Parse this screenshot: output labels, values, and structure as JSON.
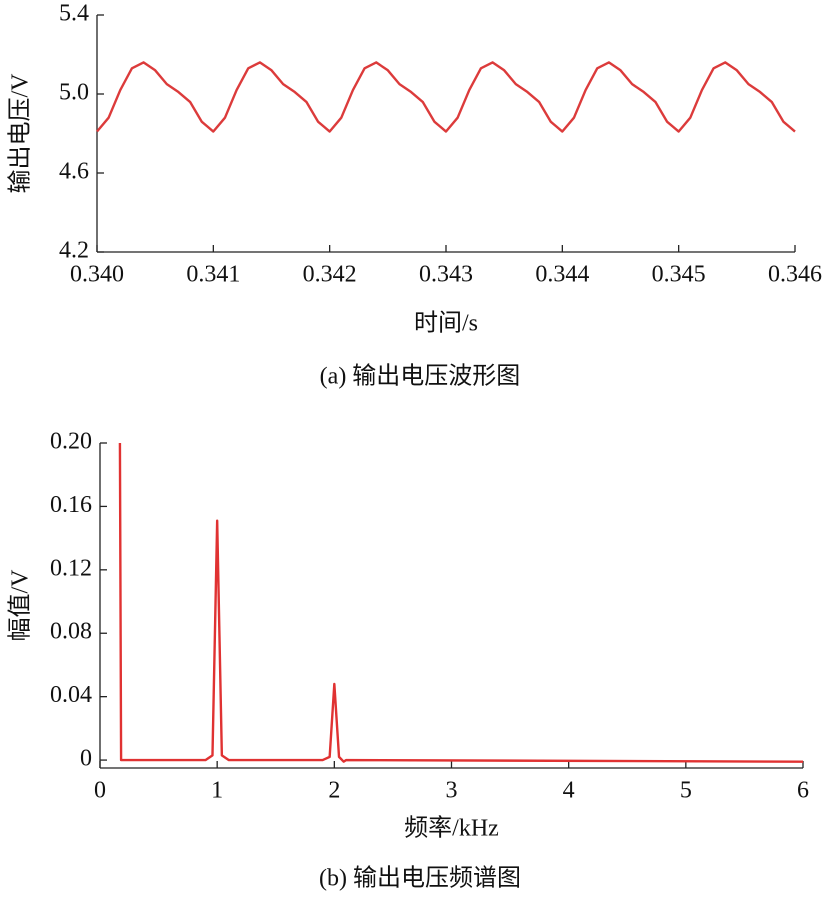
{
  "chart_data": [
    {
      "type": "line",
      "caption": "(a) 输出电压波形图",
      "xlabel": "时间/s",
      "ylabel": "输出电压/V",
      "x": [
        0.34,
        0.3401,
        0.3402,
        0.3403,
        0.3404,
        0.3405,
        0.3406,
        0.3407,
        0.3408,
        0.3409,
        0.341,
        0.3411,
        0.3412,
        0.3413,
        0.3414,
        0.3415,
        0.3416,
        0.3417,
        0.3418,
        0.3419,
        0.342,
        0.3421,
        0.3422,
        0.3423,
        0.3424,
        0.3425,
        0.3426,
        0.3427,
        0.3428,
        0.3429,
        0.343,
        0.3431,
        0.3432,
        0.3433,
        0.3434,
        0.3435,
        0.3436,
        0.3437,
        0.3438,
        0.3439,
        0.344,
        0.3441,
        0.3442,
        0.3443,
        0.3444,
        0.3445,
        0.3446,
        0.3447,
        0.3448,
        0.3449,
        0.345,
        0.3451,
        0.3452,
        0.3453,
        0.3454,
        0.3455,
        0.3456,
        0.3457,
        0.3458,
        0.3459,
        0.346
      ],
      "series": [
        {
          "color": "#dc3b3b",
          "values": [
            4.81,
            4.88,
            5.02,
            5.13,
            5.16,
            5.12,
            5.05,
            5.01,
            4.96,
            4.86,
            4.81,
            4.88,
            5.02,
            5.13,
            5.16,
            5.12,
            5.05,
            5.01,
            4.96,
            4.86,
            4.81,
            4.88,
            5.02,
            5.13,
            5.16,
            5.12,
            5.05,
            5.01,
            4.96,
            4.86,
            4.81,
            4.88,
            5.02,
            5.13,
            5.16,
            5.12,
            5.05,
            5.01,
            4.96,
            4.86,
            4.81,
            4.88,
            5.02,
            5.13,
            5.16,
            5.12,
            5.05,
            5.01,
            4.96,
            4.86,
            4.81,
            4.88,
            5.02,
            5.13,
            5.16,
            5.12,
            5.05,
            5.01,
            4.96,
            4.86,
            4.81
          ]
        }
      ],
      "xlim": [
        0.34,
        0.346
      ],
      "xticks": [
        {
          "value": 0.34,
          "label": "0.340"
        },
        0.341,
        0.342,
        0.343,
        0.344,
        0.345,
        0.346
      ],
      "ylim": [
        4.2,
        5.4
      ],
      "yticks": [
        4.2,
        4.6,
        {
          "value": 5,
          "label": "5.0"
        },
        5.4
      ]
    },
    {
      "type": "line",
      "caption": "(b) 输出电压频谱图",
      "xlabel": "频率/kHz",
      "ylabel": "幅值/V",
      "x": [
        0.17,
        0.18,
        0.9,
        0.96,
        1.0,
        1.04,
        1.1,
        1.9,
        1.96,
        2.0,
        2.04,
        2.08,
        2.1,
        6
      ],
      "series": [
        {
          "color": "#e03232",
          "values": [
            0.2,
            0,
            0,
            0.003,
            0.151,
            0.003,
            0,
            0,
            0.002,
            0.048,
            0.002,
            -0.001,
            0,
            -0.001
          ]
        }
      ],
      "xlim": [
        0,
        6
      ],
      "xticks": [
        0,
        1,
        2,
        3,
        4,
        5,
        6
      ],
      "ylim": [
        -0.005,
        0.2
      ],
      "yticks": [
        0,
        0.04,
        0.08,
        0.12,
        0.16,
        {
          "value": 0.2,
          "label": "0.20"
        }
      ]
    }
  ]
}
